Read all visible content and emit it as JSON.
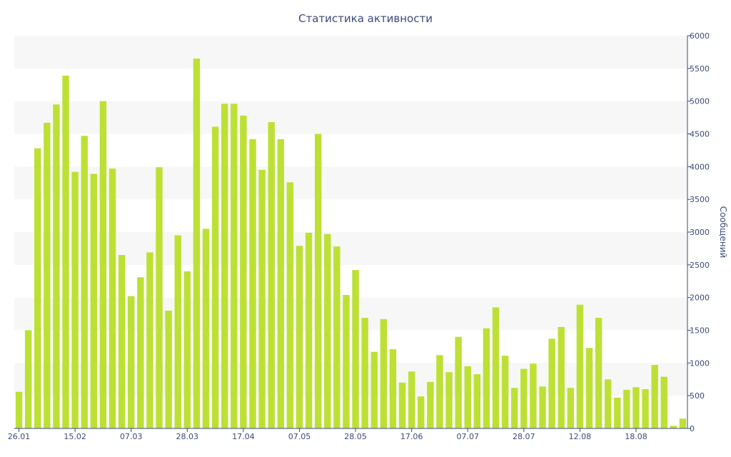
{
  "chart_data": {
    "type": "bar",
    "title": "Статистика активности",
    "xlabel": "",
    "ylabel": "Сообщений",
    "ylim": [
      0,
      6000
    ],
    "y_ticks": [
      0,
      500,
      1000,
      1500,
      2000,
      2500,
      3000,
      3500,
      4000,
      4500,
      5000,
      5500,
      6000
    ],
    "x_tick_labels": [
      {
        "label": "26.01",
        "index": 0
      },
      {
        "label": "15.02",
        "index": 6
      },
      {
        "label": "07.03",
        "index": 12
      },
      {
        "label": "28.03",
        "index": 18
      },
      {
        "label": "17.04",
        "index": 24
      },
      {
        "label": "07.05",
        "index": 30
      },
      {
        "label": "28.05",
        "index": 36
      },
      {
        "label": "17.06",
        "index": 42
      },
      {
        "label": "07.07",
        "index": 48
      },
      {
        "label": "28.07",
        "index": 54
      },
      {
        "label": "12.08",
        "index": 60
      },
      {
        "label": "18.08",
        "index": 66
      }
    ],
    "grid": "horizontal-bands",
    "bar_color": "#bde035",
    "values": [
      560,
      1500,
      4280,
      4670,
      4950,
      5390,
      3920,
      4470,
      3890,
      5000,
      3970,
      2650,
      2020,
      2310,
      2690,
      3990,
      1800,
      2950,
      2400,
      5650,
      3050,
      4610,
      4960,
      4960,
      4780,
      4420,
      3950,
      4680,
      4420,
      3760,
      2790,
      2990,
      4500,
      2970,
      2780,
      2040,
      2420,
      1690,
      1170,
      1670,
      1210,
      700,
      870,
      490,
      710,
      1120,
      860,
      1400,
      950,
      830,
      1530,
      1850,
      1110,
      620,
      910,
      990,
      640,
      1370,
      1550,
      620,
      1890,
      1230,
      1690,
      750,
      470,
      590,
      630,
      600,
      970,
      790,
      40,
      150
    ]
  }
}
